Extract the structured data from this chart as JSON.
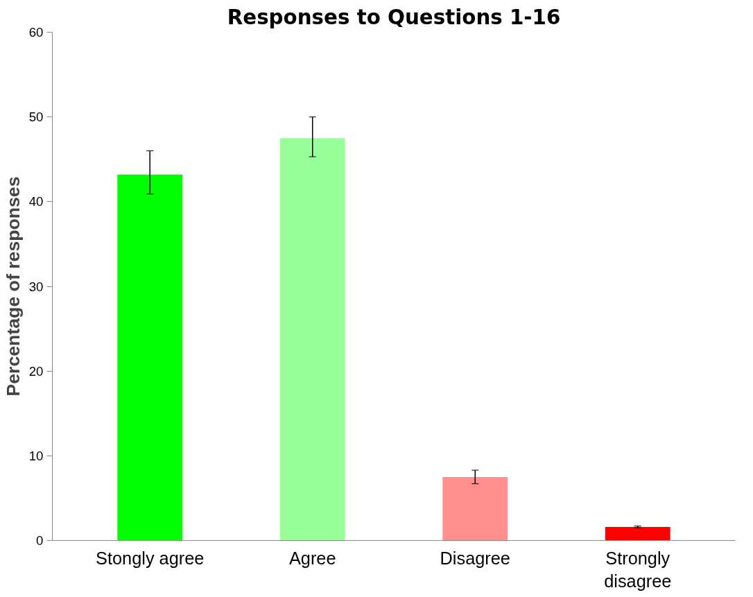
{
  "chart_data": {
    "type": "bar",
    "title": "Responses to Questions 1-16",
    "ylabel": "Percentage of responses",
    "categories": [
      "Stongly agree",
      "Agree",
      "Disagree",
      "Strongly disagree"
    ],
    "values": [
      43.2,
      47.5,
      7.5,
      1.6
    ],
    "colors": [
      "#00ff00",
      "#99ff99",
      "#ff8f8f",
      "#ff0000"
    ],
    "errors": [
      [
        40.9,
        46.0
      ],
      [
        45.3,
        50.0
      ],
      [
        6.7,
        8.3
      ],
      [
        1.5,
        1.7
      ]
    ],
    "ylim": [
      0,
      60
    ],
    "yticks": [
      0,
      10,
      20,
      30,
      40,
      50,
      60
    ],
    "grid": false
  }
}
